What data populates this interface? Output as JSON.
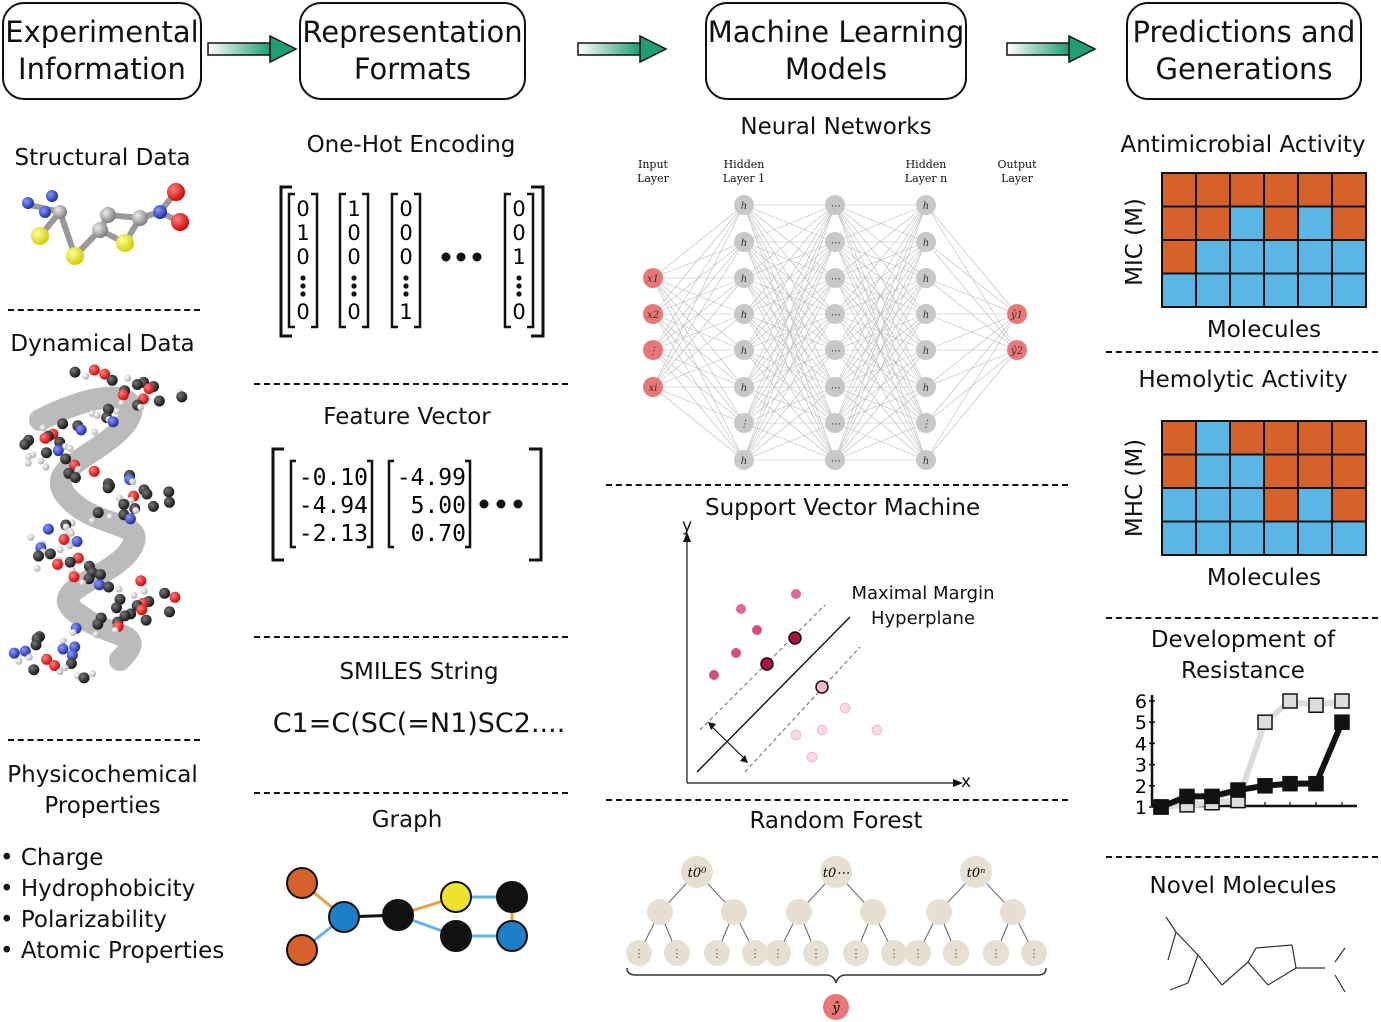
{
  "headers": {
    "experimental": "Experimental\nInformation",
    "representation": "Representation\nFormats",
    "ml_models": "Machine Learning\nModels",
    "predictions": "Predictions and\nGenerations"
  },
  "experimental": {
    "structural_data": "Structural Data",
    "dynamical_data": "Dynamical Data",
    "physicochemical_title": "Physicochemical\nProperties",
    "properties": [
      "• Charge",
      "• Hydrophobicity",
      "• Polarizability",
      "• Atomic Properties"
    ]
  },
  "representation": {
    "onehot_title": "One-Hot Encoding",
    "onehot_vectors": [
      [
        "0",
        "1",
        "0",
        "⋮",
        "0"
      ],
      [
        "1",
        "0",
        "0",
        "⋮",
        "0"
      ],
      [
        "0",
        "0",
        "0",
        "⋮",
        "1"
      ],
      [
        "0",
        "0",
        "1",
        "⋮",
        "0"
      ]
    ],
    "ellipsis": "•••",
    "feature_title": "Feature Vector",
    "feature_vectors": [
      [
        "-0.10",
        "-4.94",
        "-2.13"
      ],
      [
        "-4.99",
        "5.00",
        "0.70"
      ]
    ],
    "smiles_title": "SMILES String",
    "smiles_value": "C1=C(SC(=N1)SC2....",
    "graph_title": "Graph"
  },
  "ml": {
    "nn_title": "Neural Networks",
    "nn_layers": {
      "input": "Input\nLayer",
      "hidden1": "Hidden\nLayer 1",
      "hiddenn": "Hidden\nLayer n",
      "output": "Output\nLayer"
    },
    "nn_input_nodes": [
      "x1",
      "x2",
      "⋮",
      "xi"
    ],
    "nn_output_nodes": [
      "ŷ1",
      "ŷ2"
    ],
    "svm_title": "Support Vector Machine",
    "svm_axis_x": "x",
    "svm_axis_y": "y",
    "svm_hyperplane_label": "Maximal Margin\nHyperplane",
    "rf_title": "Random Forest",
    "rf_roots": [
      "t0⁰",
      "t0⋯",
      "t0ⁿ"
    ],
    "rf_output": "ŷ"
  },
  "predictions": {
    "antimicrobial_title": "Antimicrobial Activity",
    "mic_axis": "MIC (M)",
    "molecules_label": "Molecules",
    "hemolytic_title": "Hemolytic Activity",
    "mhc_axis": "MHC (M)",
    "resistance_title": "Development of\nResistance",
    "novel_title": "Novel Molecules",
    "mic_grid": [
      [
        1,
        1,
        1,
        1,
        1,
        1
      ],
      [
        1,
        1,
        0,
        1,
        0,
        1
      ],
      [
        1,
        0,
        0,
        0,
        0,
        0
      ],
      [
        0,
        0,
        0,
        0,
        0,
        0
      ]
    ],
    "mhc_grid": [
      [
        1,
        0,
        1,
        1,
        1,
        1
      ],
      [
        1,
        0,
        0,
        1,
        1,
        1
      ],
      [
        0,
        0,
        0,
        1,
        0,
        1
      ],
      [
        0,
        0,
        0,
        0,
        0,
        0
      ]
    ],
    "colors": {
      "orange": "#D4622A",
      "blue": "#5BB6E6",
      "arrow_green": "#1E9E74"
    },
    "resistance_chart": {
      "type": "line",
      "y_ticks": [
        "1",
        "2",
        "3",
        "4",
        "5",
        "6"
      ],
      "series": [
        {
          "values": [
            1,
            1.1,
            1.2,
            1.3,
            5,
            6,
            5.8,
            6
          ]
        },
        {
          "values": [
            1,
            1.5,
            1.5,
            1.8,
            2,
            2.1,
            2.1,
            5
          ]
        }
      ]
    }
  }
}
